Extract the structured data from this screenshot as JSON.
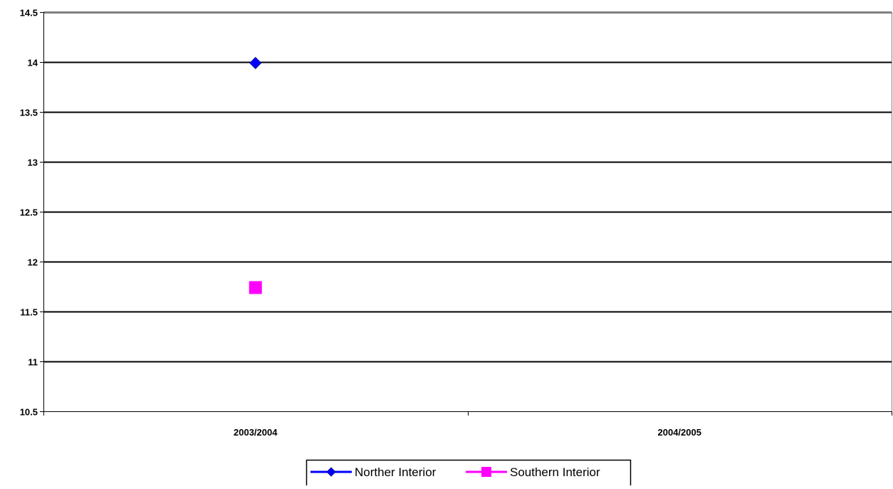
{
  "chart_data": {
    "type": "line",
    "title": "",
    "xlabel": "",
    "ylabel": "",
    "categories": [
      "2003/2004",
      "2004/2005"
    ],
    "ylim": [
      10.5,
      14.5
    ],
    "yticks": [
      "14.5",
      "14",
      "13.5",
      "13",
      "12.5",
      "12",
      "11.5",
      "11",
      "10.5"
    ],
    "grid": true,
    "legend_position": "bottom",
    "series": [
      {
        "name": "Norther Interior",
        "values": [
          13.99,
          null
        ],
        "color": "#0000ff",
        "marker": "diamond"
      },
      {
        "name": "Southern Interior",
        "values": [
          11.74,
          null
        ],
        "color": "#ff00ff",
        "marker": "square"
      }
    ]
  }
}
